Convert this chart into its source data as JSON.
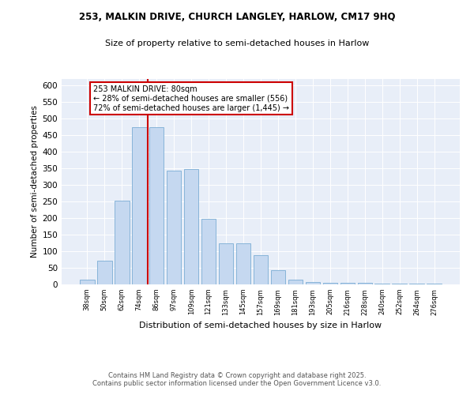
{
  "title_line1": "253, MALKIN DRIVE, CHURCH LANGLEY, HARLOW, CM17 9HQ",
  "title_line2": "Size of property relative to semi-detached houses in Harlow",
  "xlabel": "Distribution of semi-detached houses by size in Harlow",
  "ylabel": "Number of semi-detached properties",
  "categories": [
    "38sqm",
    "50sqm",
    "62sqm",
    "74sqm",
    "86sqm",
    "97sqm",
    "109sqm",
    "121sqm",
    "133sqm",
    "145sqm",
    "157sqm",
    "169sqm",
    "181sqm",
    "193sqm",
    "205sqm",
    "216sqm",
    "228sqm",
    "240sqm",
    "252sqm",
    "264sqm",
    "276sqm"
  ],
  "values": [
    15,
    72,
    253,
    474,
    474,
    343,
    347,
    197,
    125,
    125,
    88,
    44,
    15,
    8,
    5,
    5,
    4,
    3,
    2,
    2,
    3
  ],
  "bar_color": "#c5d8f0",
  "bar_edge_color": "#7aadd4",
  "annotation_title": "253 MALKIN DRIVE: 80sqm",
  "annotation_line2": "← 28% of semi-detached houses are smaller (556)",
  "annotation_line3": "72% of semi-detached houses are larger (1,445) →",
  "vline_color": "#cc0000",
  "ylim": [
    0,
    620
  ],
  "yticks": [
    0,
    50,
    100,
    150,
    200,
    250,
    300,
    350,
    400,
    450,
    500,
    550,
    600
  ],
  "footer_line1": "Contains HM Land Registry data © Crown copyright and database right 2025.",
  "footer_line2": "Contains public sector information licensed under the Open Government Licence v3.0.",
  "plot_bg_color": "#e8eef8"
}
